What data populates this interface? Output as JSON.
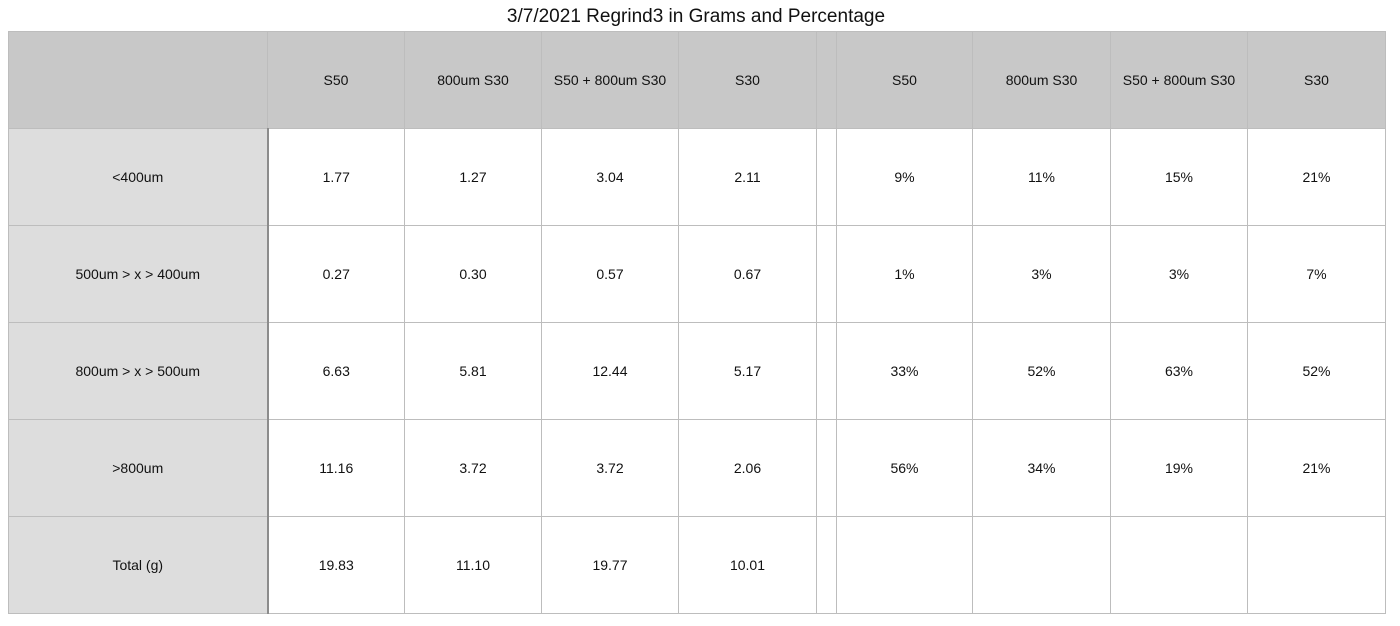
{
  "title": "3/7/2021 Regrind3 in Grams and Percentage",
  "header": {
    "corner": "",
    "grams_columns": [
      "S50",
      "800um S30",
      "S50 + 800um S30",
      "S30"
    ],
    "percent_columns": [
      "S50",
      "800um S30",
      "S50 + 800um S30",
      "S30"
    ]
  },
  "rows": [
    {
      "label": "<400um",
      "grams": [
        "1.77",
        "1.27",
        "3.04",
        "2.11"
      ],
      "percent": [
        "9%",
        "11%",
        "15%",
        "21%"
      ]
    },
    {
      "label": "500um > x > 400um",
      "grams": [
        "0.27",
        "0.30",
        "0.57",
        "0.67"
      ],
      "percent": [
        "1%",
        "3%",
        "3%",
        "7%"
      ]
    },
    {
      "label": "800um > x > 500um",
      "grams": [
        "6.63",
        "5.81",
        "12.44",
        "5.17"
      ],
      "percent": [
        "33%",
        "52%",
        "63%",
        "52%"
      ]
    },
    {
      "label": ">800um",
      "grams": [
        "11.16",
        "3.72",
        "3.72",
        "2.06"
      ],
      "percent": [
        "56%",
        "34%",
        "19%",
        "21%"
      ]
    },
    {
      "label": "Total (g)",
      "grams": [
        "19.83",
        "11.10",
        "19.77",
        "10.01"
      ],
      "percent": [
        "",
        "",
        "",
        ""
      ]
    }
  ],
  "colors": {
    "header_bg": "#c8c8c8",
    "row_label_bg": "#dddddd",
    "grid_line": "#bdbdbd"
  }
}
